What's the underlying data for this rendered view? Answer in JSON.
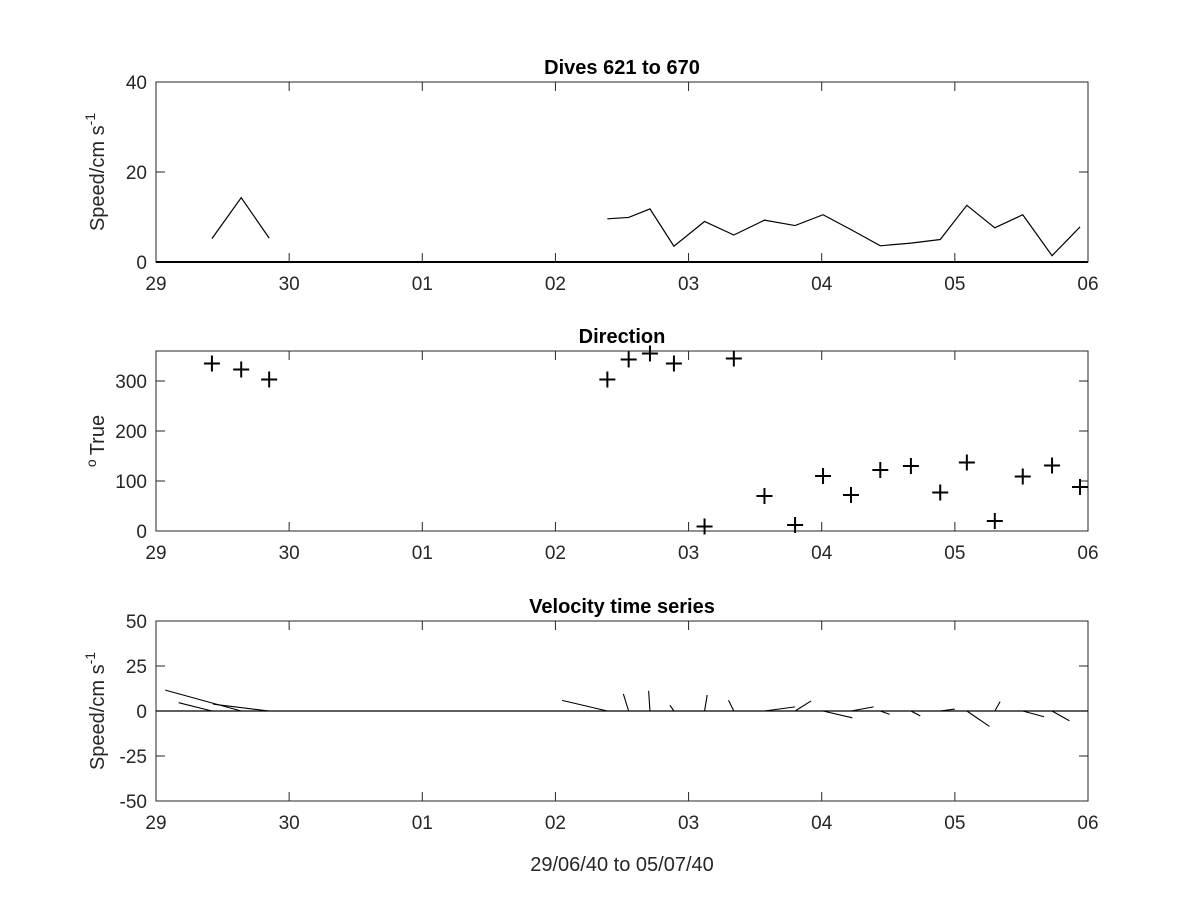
{
  "figure": {
    "xlabel": "29/06/40 to 05/07/40"
  },
  "chart_data": [
    {
      "type": "line",
      "title": "Dives 621 to 670",
      "ylabel": "Speed/cm s",
      "ylabel_superscript": "-1",
      "xlim": [
        0,
        7
      ],
      "ylim": [
        0,
        40
      ],
      "xticks": [
        0,
        1,
        2,
        3,
        4,
        5,
        6,
        7
      ],
      "xticklabels": [
        "29",
        "30",
        "01",
        "02",
        "03",
        "04",
        "05",
        "06"
      ],
      "yticks": [
        0,
        20,
        40
      ],
      "yticklabels": [
        "0",
        "20",
        "40"
      ],
      "series": [
        {
          "segments": [
            {
              "x": [
                0.42,
                0.64,
                0.85
              ],
              "y": [
                5.2,
                14.3,
                5.3
              ]
            },
            {
              "x": [
                3.39,
                3.55,
                3.71,
                3.89,
                4.12,
                4.34,
                4.57,
                4.8,
                5.01,
                5.22,
                5.44,
                5.67,
                5.89,
                6.09,
                6.3,
                6.51,
                6.73,
                6.94
              ],
              "y": [
                9.6,
                9.9,
                11.8,
                3.5,
                9.0,
                6.0,
                9.3,
                8.1,
                10.5,
                7.2,
                3.6,
                4.2,
                5.0,
                12.6,
                7.6,
                10.5,
                1.4,
                7.8
              ]
            }
          ]
        }
      ],
      "grid": false,
      "legend": "none"
    },
    {
      "type": "scatter",
      "title": "Direction",
      "ylabel": "True",
      "ylabel_superscript": "o",
      "marker": "+",
      "xlim": [
        0,
        7
      ],
      "ylim": [
        0,
        360
      ],
      "xticks": [
        0,
        1,
        2,
        3,
        4,
        5,
        6,
        7
      ],
      "xticklabels": [
        "29",
        "30",
        "01",
        "02",
        "03",
        "04",
        "05",
        "06"
      ],
      "yticks": [
        0,
        100,
        200,
        300
      ],
      "yticklabels": [
        "0",
        "100",
        "200",
        "300"
      ],
      "x": [
        0.42,
        0.64,
        0.85,
        3.39,
        3.55,
        3.71,
        3.89,
        4.12,
        4.34,
        4.57,
        4.8,
        5.01,
        5.22,
        5.44,
        5.67,
        5.89,
        6.09,
        6.3,
        6.51,
        6.73,
        6.94
      ],
      "y": [
        335,
        323,
        303,
        303,
        343,
        355,
        335,
        9,
        345,
        70,
        12,
        110,
        72,
        122,
        130,
        77,
        137,
        20,
        109,
        131,
        88
      ],
      "grid": false,
      "legend": "none"
    },
    {
      "type": "line",
      "title": "Velocity time series",
      "ylabel": "Speed/cm s",
      "ylabel_superscript": "-1",
      "style": "stick-plot",
      "xlim": [
        0,
        7
      ],
      "ylim": [
        -50,
        50
      ],
      "xticks": [
        0,
        1,
        2,
        3,
        4,
        5,
        6,
        7
      ],
      "xticklabels": [
        "29",
        "30",
        "01",
        "02",
        "03",
        "04",
        "05",
        "06"
      ],
      "yticks": [
        50,
        25,
        0,
        -25,
        -50
      ],
      "yticklabels": [
        "50",
        "25",
        "0",
        "-25",
        "-50"
      ],
      "sticks": [
        {
          "x": 0.42,
          "u": -0.25,
          "v": 4.6
        },
        {
          "x": 0.64,
          "u": -0.57,
          "v": 11.6
        },
        {
          "x": 0.85,
          "u": -0.42,
          "v": 3.8
        },
        {
          "x": 3.39,
          "u": -0.34,
          "v": 5.9
        },
        {
          "x": 3.55,
          "u": -0.04,
          "v": 9.5
        },
        {
          "x": 3.71,
          "u": -0.01,
          "v": 11.2
        },
        {
          "x": 3.89,
          "u": -0.03,
          "v": 3.2
        },
        {
          "x": 4.12,
          "u": 0.02,
          "v": 8.9
        },
        {
          "x": 4.34,
          "u": -0.04,
          "v": 6.0
        },
        {
          "x": 4.57,
          "u": 0.23,
          "v": 2.3
        },
        {
          "x": 4.8,
          "u": 0.12,
          "v": 5.6
        },
        {
          "x": 5.01,
          "u": 0.22,
          "v": -3.8
        },
        {
          "x": 5.22,
          "u": 0.17,
          "v": 2.3
        },
        {
          "x": 5.44,
          "u": 0.07,
          "v": -1.9
        },
        {
          "x": 5.67,
          "u": 0.07,
          "v": -2.7
        },
        {
          "x": 5.89,
          "u": 0.11,
          "v": 1.1
        },
        {
          "x": 6.09,
          "u": 0.17,
          "v": -8.6
        },
        {
          "x": 6.3,
          "u": 0.04,
          "v": 5.2
        },
        {
          "x": 6.51,
          "u": 0.16,
          "v": -3.2
        },
        {
          "x": 6.73,
          "u": 0.13,
          "v": -5.4
        }
      ],
      "grid": false,
      "legend": "none"
    }
  ]
}
